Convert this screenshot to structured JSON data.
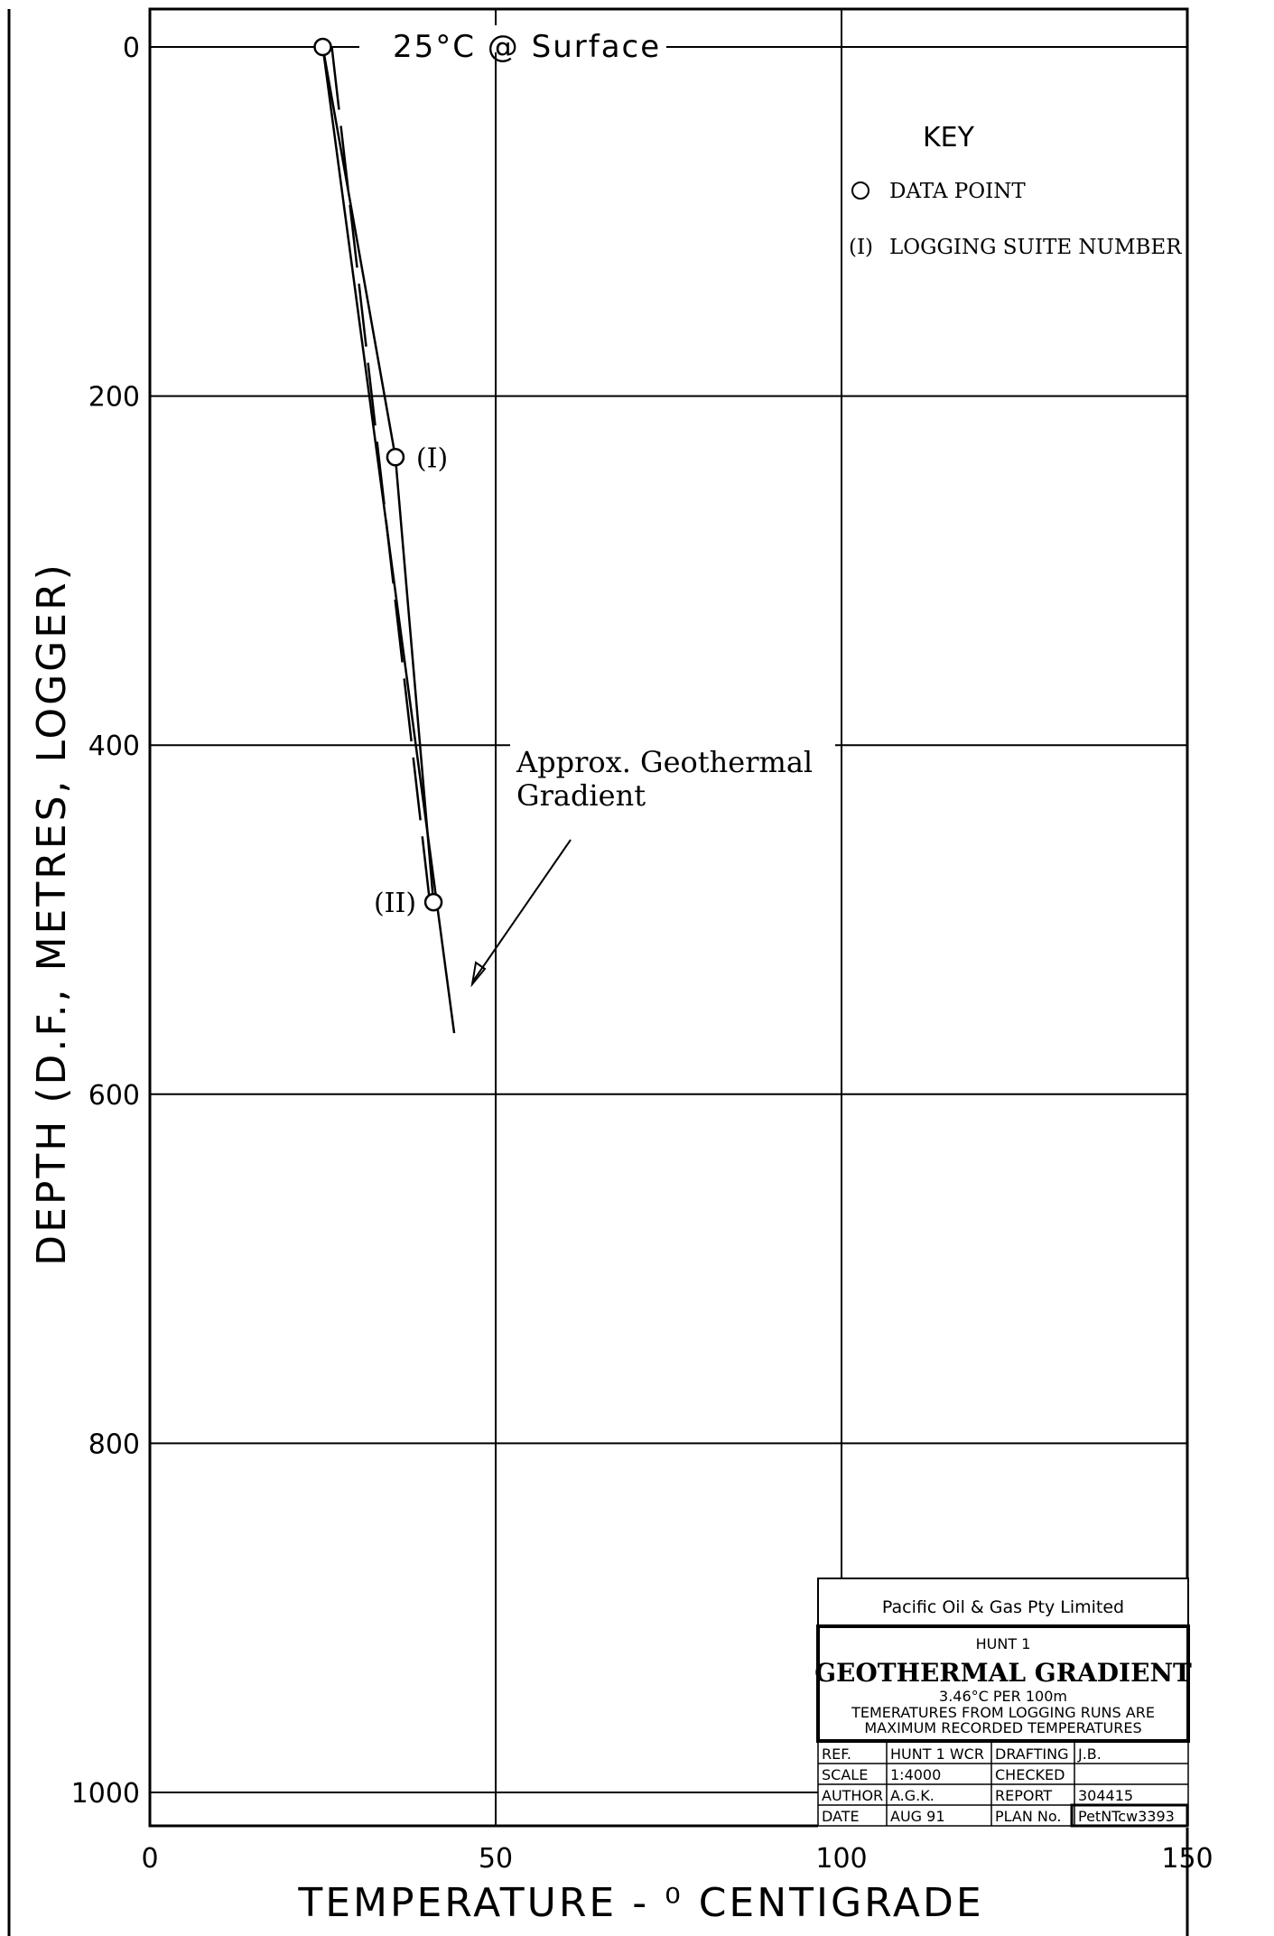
{
  "chart_data": {
    "type": "line",
    "xlabel": "TEMPERATURE - ⁰ CENTIGRADE",
    "ylabel": "DEPTH (D.F., METRES, LOGGER)",
    "xlim": [
      0,
      150
    ],
    "ylim": [
      1000,
      0
    ],
    "x_ticks": [
      0,
      50,
      100,
      150
    ],
    "y_ticks": [
      0,
      200,
      400,
      600,
      800,
      1000
    ],
    "grid": true,
    "points": [
      {
        "x": 25,
        "y": 0,
        "label": ""
      },
      {
        "x": 35.5,
        "y": 235,
        "label": "(I)"
      },
      {
        "x": 41,
        "y": 490,
        "label": "(II)"
      }
    ],
    "gradient_line": {
      "x": [
        25,
        44
      ],
      "y": [
        0,
        565
      ]
    },
    "dashed_line": {
      "x": [
        25,
        41
      ],
      "y": [
        0,
        490
      ]
    },
    "annotations": {
      "surface": "25°C @ Surface",
      "gradient_line1": "Approx. Geothermal",
      "gradient_line2": "Gradient"
    },
    "key": {
      "title": "KEY",
      "data_point": "DATA POINT",
      "suite_symbol": "(I)",
      "suite": "LOGGING SUITE NUMBER"
    }
  },
  "title_block": {
    "company": "Pacific Oil & Gas Pty Limited",
    "well": "HUNT 1",
    "title": "GEOTHERMAL GRADIENT",
    "rate": "3.46°C PER 100m",
    "note1": "TEMERATURES FROM LOGGING RUNS ARE",
    "note2": "MAXIMUM RECORDED TEMPERATURES",
    "rows": [
      [
        "REF.",
        "HUNT 1 WCR",
        "DRAFTING",
        "J.B."
      ],
      [
        "SCALE",
        "1:4000",
        "CHECKED",
        ""
      ],
      [
        "AUTHOR",
        "A.G.K.",
        "REPORT",
        "304415"
      ],
      [
        "DATE",
        "AUG 91",
        "PLAN No.",
        "PetNTcw3393"
      ]
    ]
  }
}
